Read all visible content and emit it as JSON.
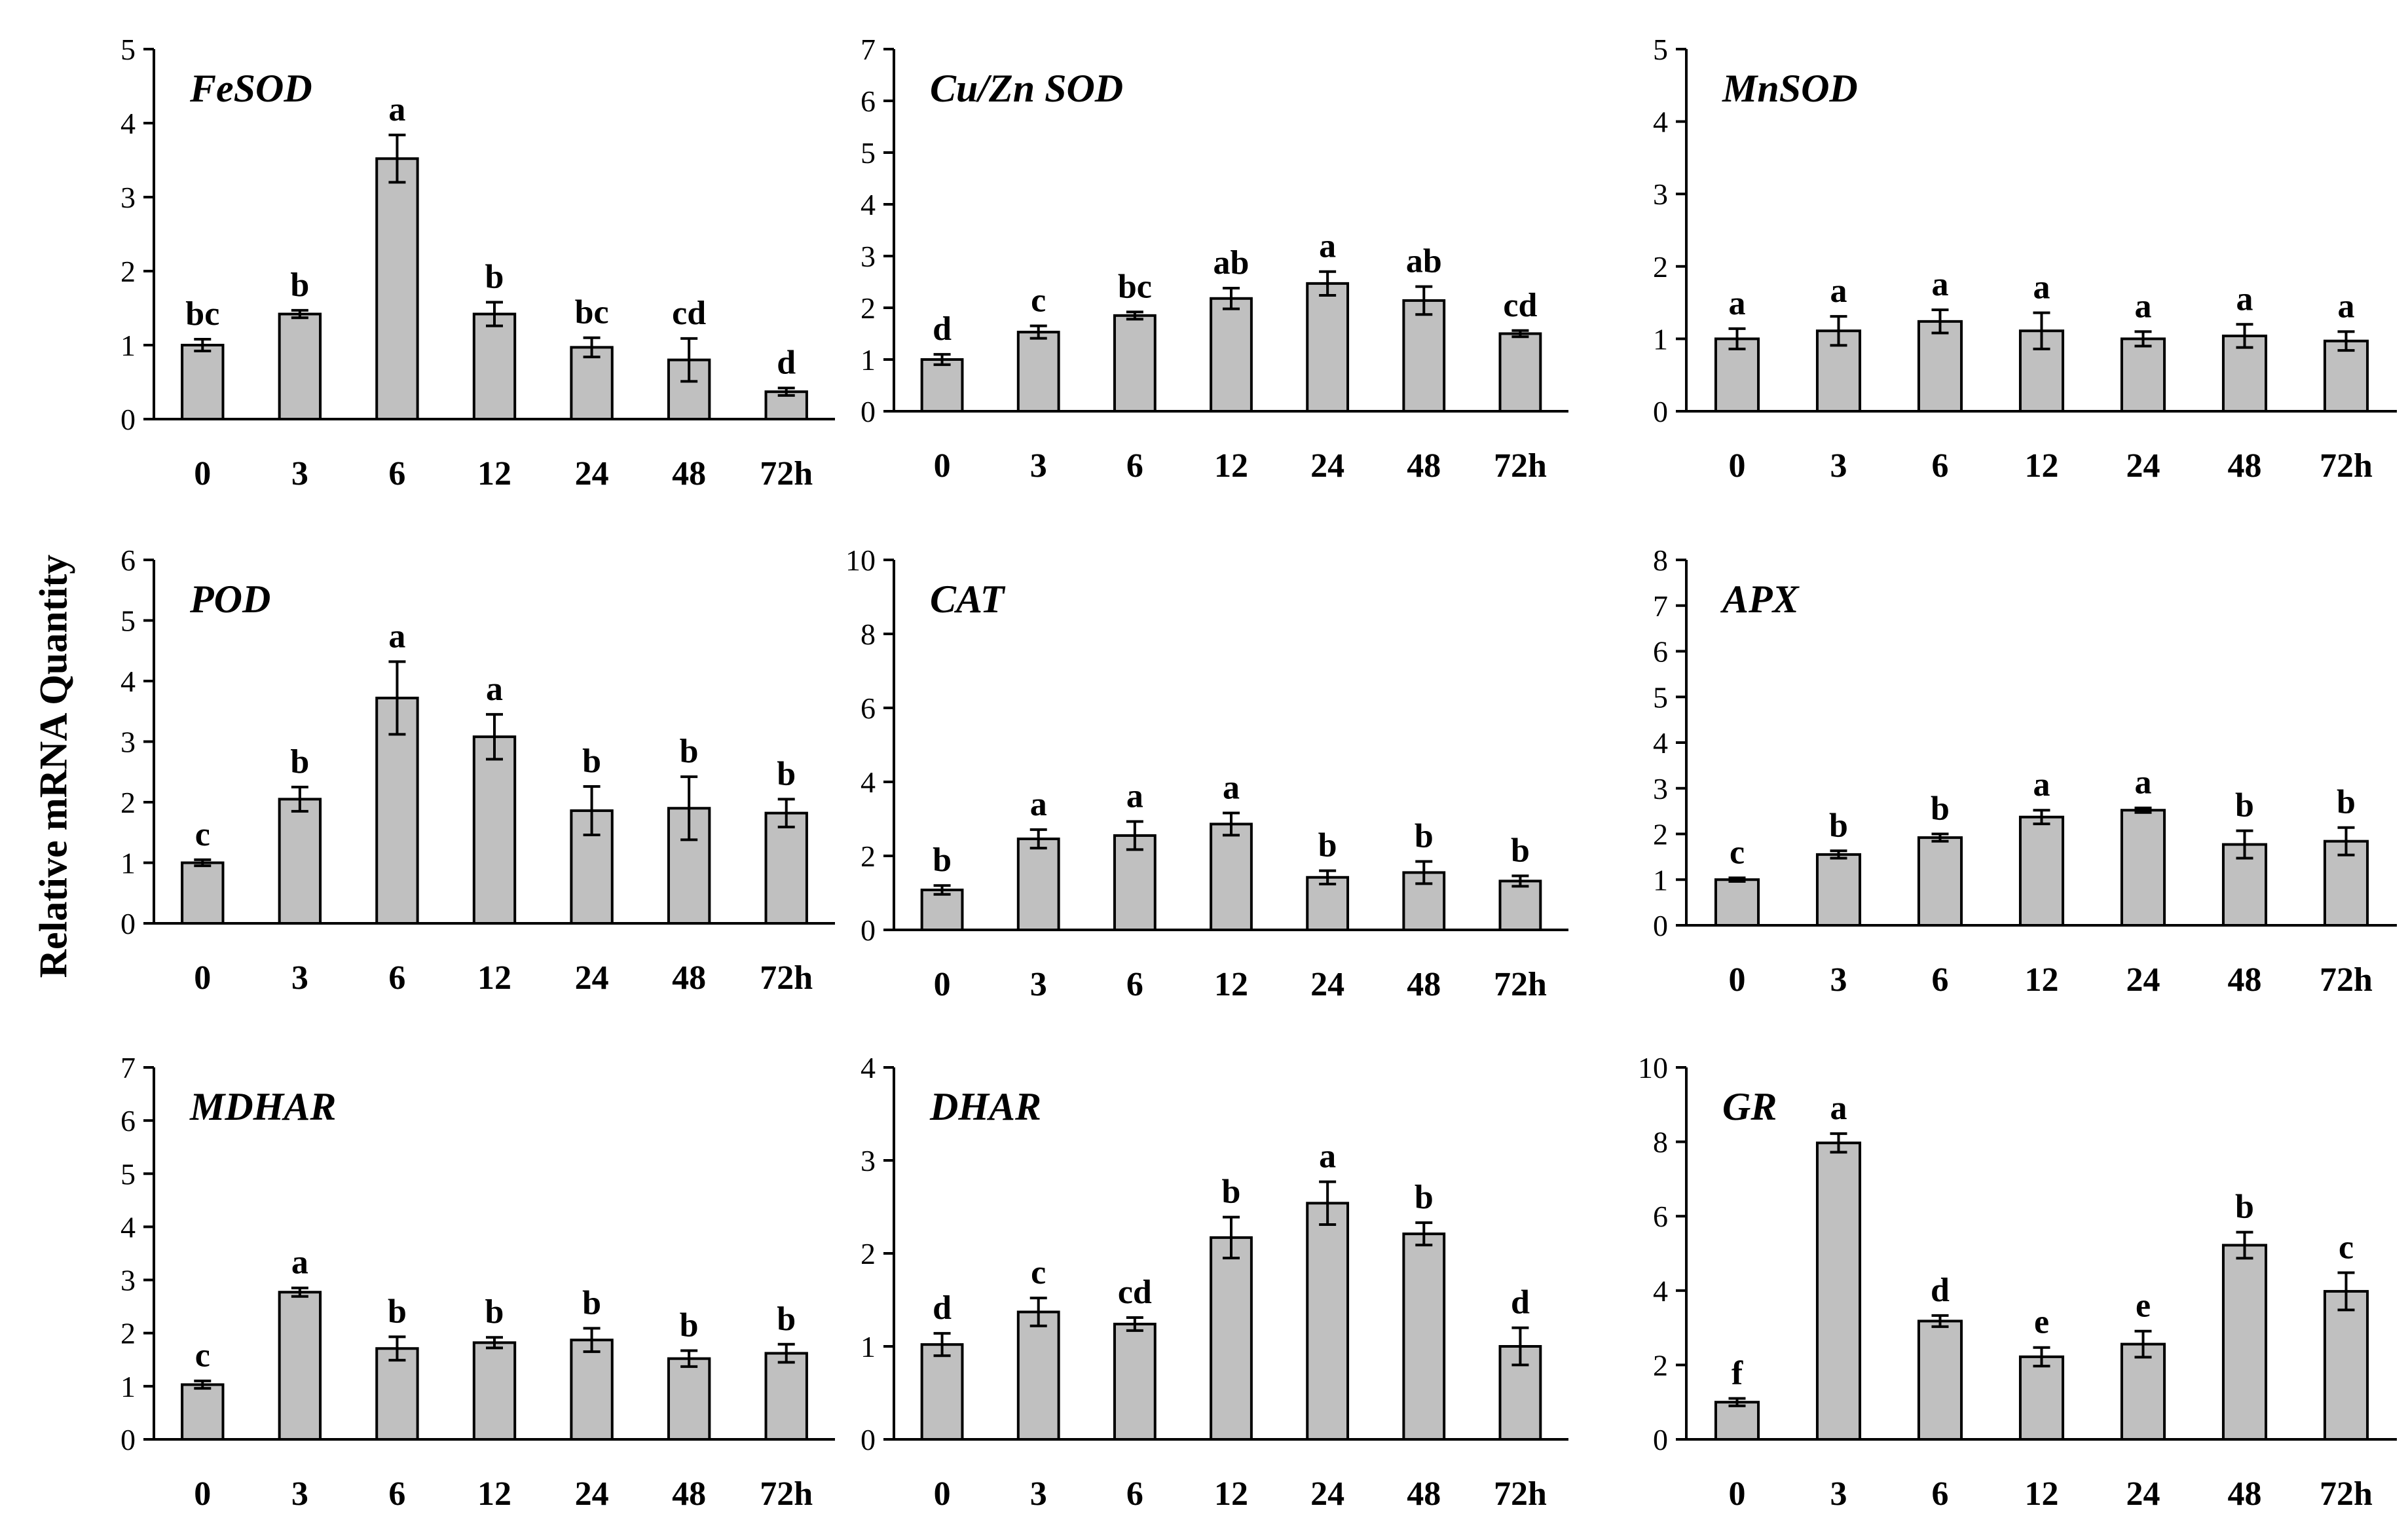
{
  "figure": {
    "ylabel": "Relative mRNA Quantity",
    "bar_color": "#c0c0c0",
    "edge_color": "#000000"
  },
  "chart_data": [
    {
      "type": "bar",
      "title": "FeSOD",
      "categories": [
        "0",
        "3",
        "6",
        "12",
        "24",
        "48",
        "72h"
      ],
      "values": [
        1.0,
        1.42,
        3.52,
        1.42,
        0.97,
        0.8,
        0.37
      ],
      "errors": [
        0.08,
        0.05,
        0.32,
        0.16,
        0.13,
        0.29,
        0.05
      ],
      "letters": [
        "bc",
        "b",
        "a",
        "b",
        "bc",
        "cd",
        "d"
      ],
      "ylim": [
        0,
        5
      ],
      "yticks": [
        "0",
        "1",
        "2",
        "3",
        "4",
        "5"
      ]
    },
    {
      "type": "bar",
      "title": "Cu/Zn SOD",
      "categories": [
        "0",
        "3",
        "6",
        "12",
        "24",
        "48",
        "72h"
      ],
      "values": [
        1.0,
        1.53,
        1.85,
        2.18,
        2.47,
        2.14,
        1.5
      ],
      "errors": [
        0.1,
        0.12,
        0.07,
        0.2,
        0.23,
        0.27,
        0.06
      ],
      "letters": [
        "d",
        "c",
        "bc",
        "ab",
        "a",
        "ab",
        "cd"
      ],
      "ylim": [
        0,
        7
      ],
      "yticks": [
        "0",
        "1",
        "2",
        "3",
        "4",
        "5",
        "6",
        "7"
      ]
    },
    {
      "type": "bar",
      "title": "MnSOD",
      "categories": [
        "0",
        "3",
        "6",
        "12",
        "24",
        "48",
        "72h"
      ],
      "values": [
        1.0,
        1.11,
        1.24,
        1.11,
        1.0,
        1.04,
        0.97
      ],
      "errors": [
        0.14,
        0.2,
        0.16,
        0.25,
        0.1,
        0.16,
        0.13
      ],
      "letters": [
        "a",
        "a",
        "a",
        "a",
        "a",
        "a",
        "a"
      ],
      "ylim": [
        0,
        5
      ],
      "yticks": [
        "0",
        "1",
        "2",
        "3",
        "4",
        "5"
      ]
    },
    {
      "type": "bar",
      "title": "POD",
      "categories": [
        "0",
        "3",
        "6",
        "12",
        "24",
        "48",
        "72h"
      ],
      "values": [
        1.0,
        2.05,
        3.72,
        3.08,
        1.86,
        1.9,
        1.82
      ],
      "errors": [
        0.05,
        0.2,
        0.6,
        0.37,
        0.4,
        0.52,
        0.23
      ],
      "letters": [
        "c",
        "b",
        "a",
        "a",
        "b",
        "b",
        "b"
      ],
      "ylim": [
        0,
        6
      ],
      "yticks": [
        "0",
        "1",
        "2",
        "3",
        "4",
        "5",
        "6"
      ]
    },
    {
      "type": "bar",
      "title": "CAT",
      "categories": [
        "0",
        "3",
        "6",
        "12",
        "24",
        "48",
        "72h"
      ],
      "values": [
        1.08,
        2.46,
        2.55,
        2.86,
        1.42,
        1.55,
        1.32
      ],
      "errors": [
        0.12,
        0.25,
        0.38,
        0.3,
        0.18,
        0.3,
        0.14
      ],
      "letters": [
        "b",
        "a",
        "a",
        "a",
        "b",
        "b",
        "b"
      ],
      "ylim": [
        0,
        10
      ],
      "yticks": [
        "0",
        "2",
        "4",
        "6",
        "8",
        "10"
      ]
    },
    {
      "type": "bar",
      "title": "APX",
      "categories": [
        "0",
        "3",
        "6",
        "12",
        "24",
        "48",
        "72h"
      ],
      "values": [
        1.0,
        1.55,
        1.92,
        2.37,
        2.52,
        1.77,
        1.84
      ],
      "errors": [
        0.04,
        0.08,
        0.08,
        0.15,
        0.05,
        0.3,
        0.3
      ],
      "letters": [
        "c",
        "b",
        "b",
        "a",
        "a",
        "b",
        "b"
      ],
      "ylim": [
        0,
        8
      ],
      "yticks": [
        "0",
        "1",
        "2",
        "3",
        "4",
        "5",
        "6",
        "7",
        "8"
      ]
    },
    {
      "type": "bar",
      "title": "MDHAR",
      "categories": [
        "0",
        "3",
        "6",
        "12",
        "24",
        "48",
        "72h"
      ],
      "values": [
        1.03,
        2.77,
        1.71,
        1.82,
        1.87,
        1.52,
        1.62
      ],
      "errors": [
        0.07,
        0.08,
        0.22,
        0.1,
        0.22,
        0.15,
        0.17
      ],
      "letters": [
        "c",
        "a",
        "b",
        "b",
        "b",
        "b",
        "b"
      ],
      "ylim": [
        0,
        7
      ],
      "yticks": [
        "0",
        "1",
        "2",
        "3",
        "4",
        "5",
        "6",
        "7"
      ]
    },
    {
      "type": "bar",
      "title": "DHAR",
      "categories": [
        "0",
        "3",
        "6",
        "12",
        "24",
        "48",
        "72h"
      ],
      "values": [
        1.02,
        1.37,
        1.24,
        2.17,
        2.54,
        2.21,
        1.0
      ],
      "errors": [
        0.12,
        0.15,
        0.07,
        0.22,
        0.23,
        0.12,
        0.2
      ],
      "letters": [
        "d",
        "c",
        "cd",
        "b",
        "a",
        "b",
        "d"
      ],
      "ylim": [
        0,
        4
      ],
      "yticks": [
        "0",
        "1",
        "2",
        "3",
        "4"
      ]
    },
    {
      "type": "bar",
      "title": "GR",
      "categories": [
        "0",
        "3",
        "6",
        "12",
        "24",
        "48",
        "72h"
      ],
      "values": [
        1.0,
        7.97,
        3.18,
        2.22,
        2.56,
        5.22,
        3.98
      ],
      "errors": [
        0.1,
        0.25,
        0.15,
        0.25,
        0.35,
        0.35,
        0.5
      ],
      "letters": [
        "f",
        "a",
        "d",
        "e",
        "e",
        "b",
        "c"
      ],
      "ylim": [
        0,
        10
      ],
      "yticks": [
        "0",
        "2",
        "4",
        "6",
        "8",
        "10"
      ]
    }
  ]
}
